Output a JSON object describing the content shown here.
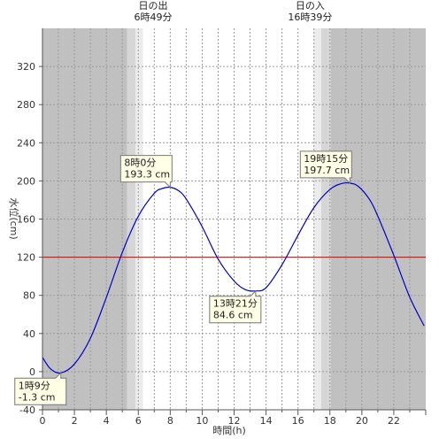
{
  "chart_data": {
    "type": "line",
    "xlabel": "時間(h)",
    "ylabel": "水位(cm)",
    "xlim": [
      0,
      24
    ],
    "ylim": [
      -40,
      360
    ],
    "x_ticks": [
      0,
      2,
      4,
      6,
      8,
      10,
      12,
      14,
      16,
      18,
      20,
      22
    ],
    "y_ticks": [
      -40,
      0,
      40,
      80,
      120,
      160,
      200,
      240,
      280,
      320
    ],
    "x_tick_labels": [
      "0",
      "2",
      "4",
      "6",
      "8",
      "10",
      "12",
      "14",
      "16",
      "18",
      "20",
      "22"
    ],
    "y_tick_labels": [
      "-40",
      "0",
      "40",
      "80",
      "120",
      "160",
      "200",
      "240",
      "280",
      "320"
    ],
    "reference_line": {
      "y": 120,
      "color": "#e00000"
    },
    "series": [
      {
        "color": "#0000cc",
        "x": [
          0,
          0.5,
          1.15,
          2,
          3,
          4,
          5,
          6,
          7,
          7.5,
          8,
          8.5,
          9,
          10,
          11,
          12,
          12.7,
          13.35,
          14,
          15,
          16,
          17,
          18,
          18.7,
          19.25,
          19.8,
          20.5,
          21,
          22,
          23,
          23.9
        ],
        "y": [
          15,
          3,
          -1.3,
          8,
          35,
          78,
          125,
          163,
          187,
          192,
          193.3,
          190,
          181,
          152,
          118,
          95,
          86,
          84.6,
          88,
          112,
          143,
          172,
          191,
          197,
          197.7,
          194,
          180,
          163,
          122,
          78,
          48
        ]
      }
    ],
    "shading": [
      {
        "from": 0,
        "to": 5.3,
        "shade": "night",
        "color": "#c0c0c0"
      },
      {
        "from": 5.3,
        "to": 5.82,
        "shade": "twilight",
        "color": "#d6d6d6"
      },
      {
        "from": 5.82,
        "to": 6.3,
        "shade": "dawn",
        "color": "#ececec"
      },
      {
        "from": 6.3,
        "to": 16.98,
        "shade": "day",
        "color": "#ffffff"
      },
      {
        "from": 16.98,
        "to": 17.45,
        "shade": "dusk",
        "color": "#ececec"
      },
      {
        "from": 17.45,
        "to": 18.05,
        "shade": "twilight",
        "color": "#d6d6d6"
      },
      {
        "from": 18.05,
        "to": 24,
        "shade": "night",
        "color": "#c0c0c0"
      }
    ],
    "sun_events": [
      {
        "name": "日の出",
        "time": "6時49分",
        "x": 6.82
      },
      {
        "name": "日の入",
        "time": "16時39分",
        "x": 16.65
      }
    ],
    "annotations": [
      {
        "time": "8時0分",
        "value": "193.3 cm",
        "x": 8.0,
        "y": 193.3,
        "placement": "upper-left"
      },
      {
        "time": "13時21分",
        "value": "84.6 cm",
        "x": 13.35,
        "y": 84.6,
        "placement": "lower-left"
      },
      {
        "time": "19時15分",
        "value": "197.7 cm",
        "x": 19.25,
        "y": 197.7,
        "placement": "upper-left"
      },
      {
        "time": "1時9分",
        "value": "-1.3 cm",
        "x": 1.15,
        "y": -1.3,
        "placement": "lower-left"
      }
    ]
  }
}
